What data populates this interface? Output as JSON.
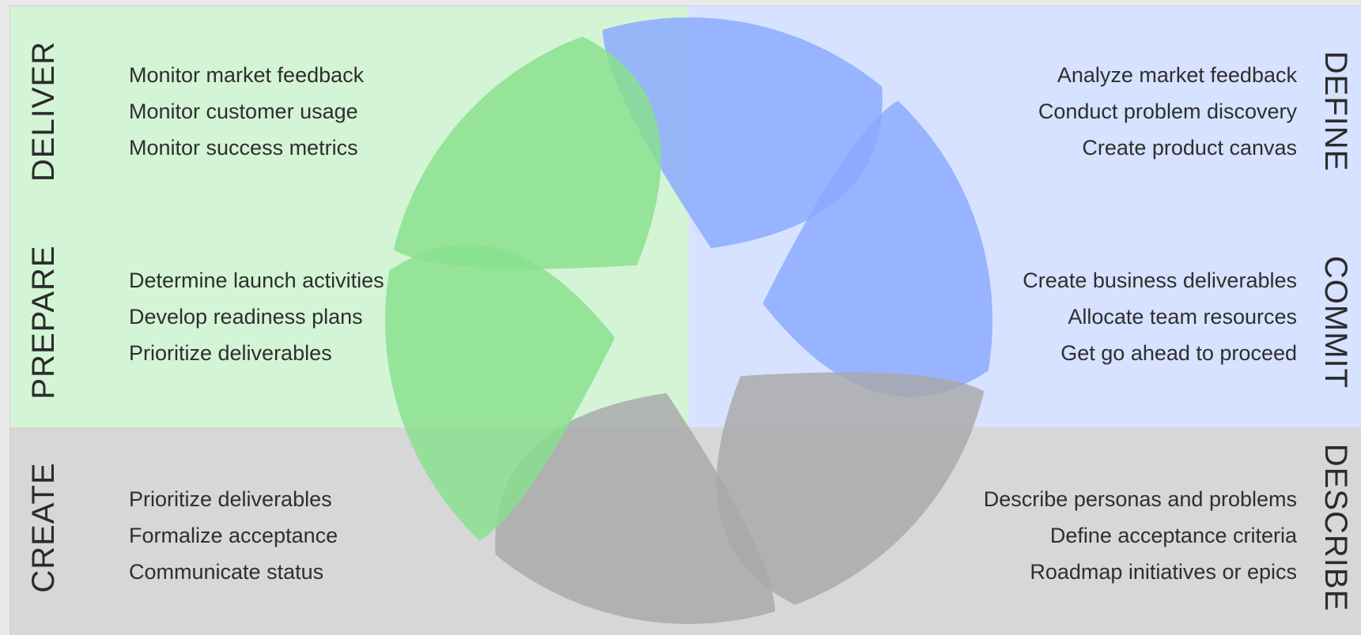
{
  "colors": {
    "green_quadrant": "#d4f4d6",
    "blue_quadrant": "#d6e2ff",
    "gray_quadrant": "#d7d7d7",
    "green_blade": "#88e08c",
    "blue_blade": "#8aa8ff",
    "gray_blade": "#a8a8a8"
  },
  "phases": {
    "deliver": {
      "label": "DELIVER",
      "tasks": [
        "Monitor market feedback",
        "Monitor customer usage",
        "Monitor success metrics"
      ]
    },
    "prepare": {
      "label": "PREPARE",
      "tasks": [
        "Determine launch activities",
        "Develop readiness plans",
        "Prioritize deliverables"
      ]
    },
    "create": {
      "label": "CREATE",
      "tasks": [
        "Prioritize deliverables",
        "Formalize acceptance",
        "Communicate status"
      ]
    },
    "define": {
      "label": "DEFINE",
      "tasks": [
        "Analyze market feedback",
        "Conduct problem discovery",
        "Create product canvas"
      ]
    },
    "commit": {
      "label": "COMMIT",
      "tasks": [
        "Create business deliverables",
        "Allocate team resources",
        "Get go ahead to proceed"
      ]
    },
    "describe": {
      "label": "DESCRIBE",
      "tasks": [
        "Describe personas and problems",
        "Define acceptance criteria",
        "Roadmap initiatives or epics"
      ]
    }
  }
}
